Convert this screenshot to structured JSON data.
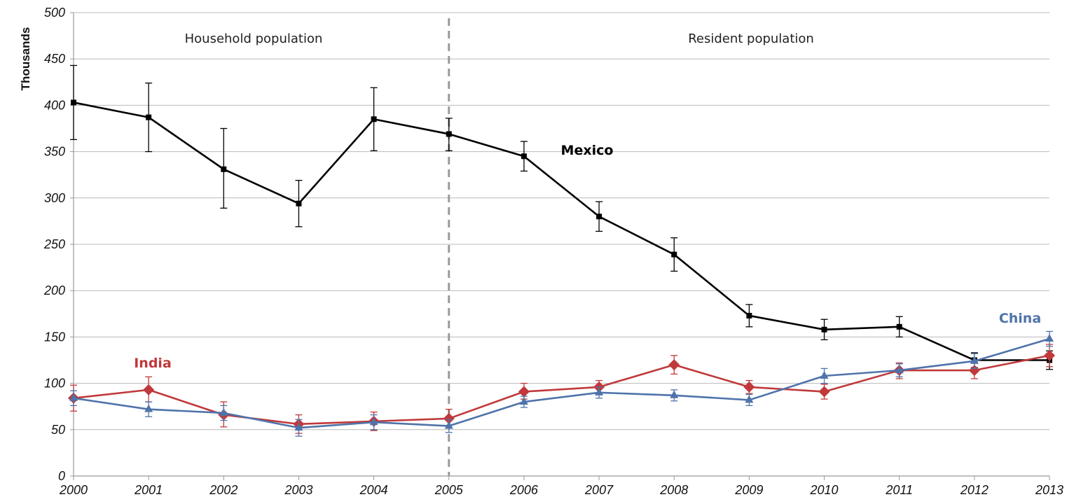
{
  "chart_data": {
    "type": "line",
    "ylabel": "Thousands",
    "xlabel": "",
    "ylim": [
      0,
      500
    ],
    "yticks": [
      0,
      50,
      100,
      150,
      200,
      250,
      300,
      350,
      400,
      450,
      500
    ],
    "x": [
      2000,
      2001,
      2002,
      2003,
      2004,
      2005,
      2006,
      2007,
      2008,
      2009,
      2010,
      2011,
      2012,
      2013
    ],
    "grid": true,
    "divider_at": 2005,
    "regions": {
      "left": "Household population",
      "right": "Resident population"
    },
    "series": [
      {
        "name": "Mexico",
        "color": "#000000",
        "marker": "square",
        "values": [
          403,
          387,
          331,
          294,
          385,
          369,
          345,
          280,
          239,
          173,
          158,
          161,
          125,
          125
        ],
        "err_low": [
          363,
          350,
          289,
          269,
          351,
          351,
          329,
          264,
          221,
          161,
          147,
          150,
          117,
          115
        ],
        "err_high": [
          443,
          424,
          375,
          319,
          419,
          386,
          361,
          296,
          257,
          185,
          169,
          172,
          133,
          135
        ]
      },
      {
        "name": "India",
        "color": "#c0393b",
        "marker": "diamond",
        "values": [
          84,
          93,
          66,
          56,
          59,
          62,
          91,
          96,
          120,
          96,
          91,
          114,
          114,
          130
        ],
        "err_low": [
          70,
          80,
          53,
          46,
          49,
          52,
          83,
          89,
          110,
          89,
          83,
          105,
          105,
          118
        ],
        "err_high": [
          98,
          107,
          80,
          66,
          69,
          72,
          100,
          103,
          130,
          103,
          99,
          122,
          123,
          142
        ]
      },
      {
        "name": "China",
        "color": "#4f73aa",
        "marker": "triangle",
        "values": [
          84,
          72,
          68,
          52,
          58,
          54,
          80,
          90,
          87,
          82,
          108,
          114,
          124,
          148
        ],
        "err_low": [
          76,
          64,
          60,
          43,
          50,
          47,
          74,
          84,
          81,
          76,
          100,
          107,
          116,
          140
        ],
        "err_high": [
          92,
          80,
          76,
          61,
          66,
          61,
          86,
          96,
          93,
          88,
          116,
          121,
          132,
          156
        ]
      }
    ]
  }
}
